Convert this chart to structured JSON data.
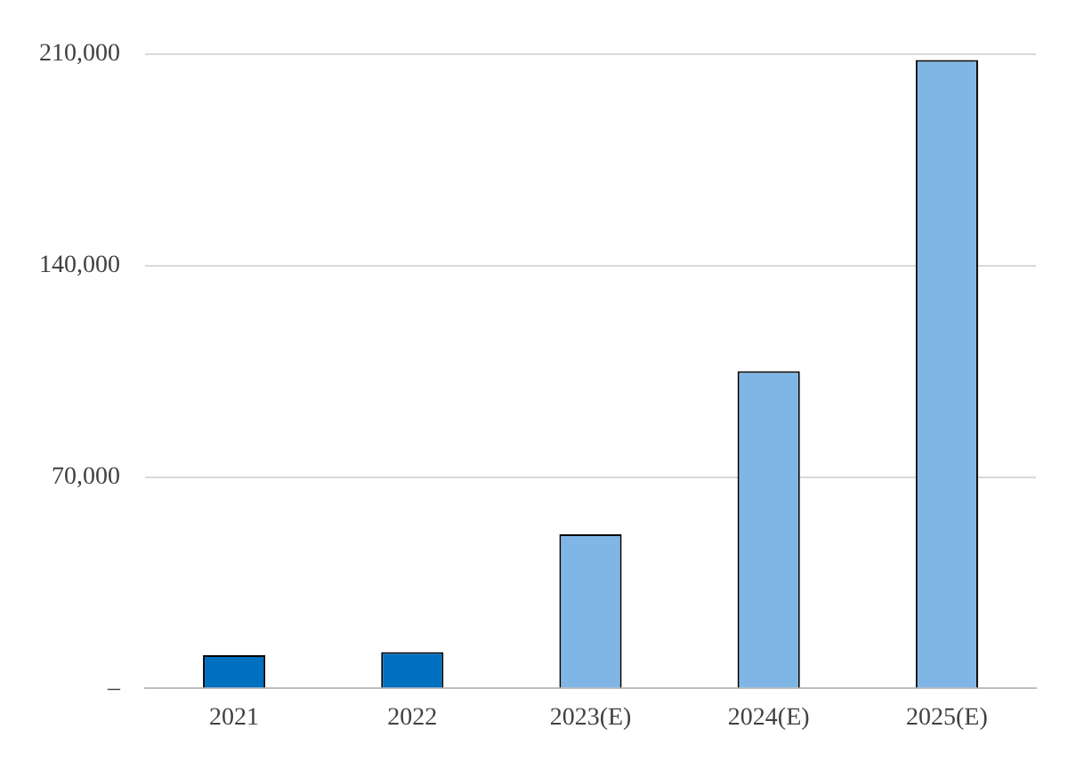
{
  "chart_data": {
    "type": "bar",
    "categories": [
      "2021",
      "2022",
      "2023(E)",
      "2024(E)",
      "2025(E)"
    ],
    "values": [
      11000,
      12000,
      51000,
      105000,
      208000
    ],
    "colors": [
      "#0070c0",
      "#0070c0",
      "#7fb6e6",
      "#7fb6e6",
      "#7fb6e6"
    ],
    "ylim": [
      0,
      210000
    ],
    "yticks": [
      {
        "value": 0,
        "label": "–"
      },
      {
        "value": 70000,
        "label": "70,000"
      },
      {
        "value": 140000,
        "label": "140,000"
      },
      {
        "value": 210000,
        "label": "210,000"
      }
    ],
    "grid": "y",
    "legend": false
  }
}
